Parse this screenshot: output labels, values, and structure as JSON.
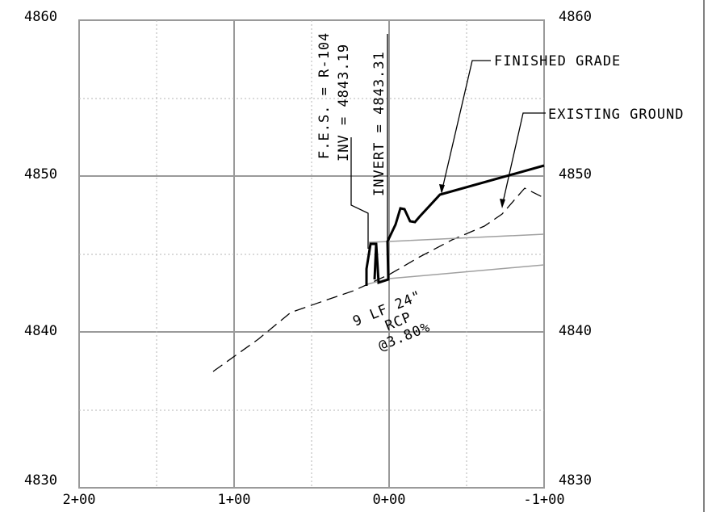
{
  "profile": {
    "elevation_ticks": [
      "4860",
      "4850",
      "4840",
      "4830"
    ],
    "station_ticks": [
      "2+00",
      "1+00",
      "0+00",
      "-1+00"
    ],
    "callouts": {
      "finished_grade": "FINISHED GRADE",
      "existing_ground": "EXISTING GROUND",
      "fes_label": "F.E.S. = R-104",
      "fes_inv": "INV = 4843.19",
      "invert": "INVERT = 4843.31",
      "pipe_length": "9 LF 24\"",
      "pipe_material": "RCP",
      "pipe_slope": "@3.80%"
    },
    "colors": {
      "major_grid": "#9a9a9a",
      "minor_grid": "#b5b5b5",
      "profile_line": "#000000",
      "pipe_line": "#a0a0a0"
    }
  }
}
